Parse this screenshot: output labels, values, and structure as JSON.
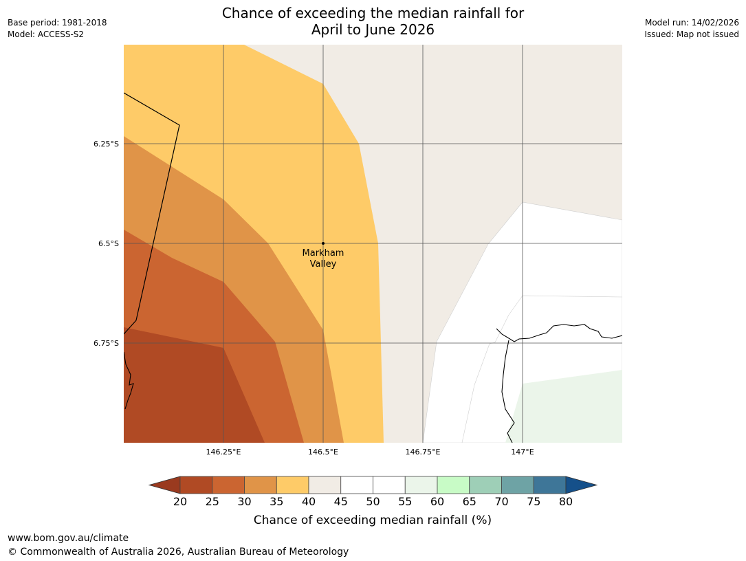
{
  "header": {
    "title_line1": "Chance of exceeding the median rainfall for",
    "title_line2": "April to June 2026",
    "base_period": "Base period: 1981-2018",
    "model": "Model: ACCESS-S2",
    "model_run": "Model run: 14/02/2026",
    "issued": "Issued: Map not issued"
  },
  "map": {
    "lat_labels": [
      "6.25°S",
      "6.5°S",
      "6.75°S"
    ],
    "lon_labels": [
      "146.25°E",
      "146.5°E",
      "146.75°E",
      "147°E"
    ],
    "place_line1": "Markham",
    "place_line2": "Valley"
  },
  "colorbar": {
    "title": "Chance of exceeding median rainfall (%)",
    "ticks": [
      "20",
      "25",
      "30",
      "35",
      "40",
      "45",
      "50",
      "55",
      "60",
      "65",
      "70",
      "75",
      "80"
    ],
    "under_color": "#9a3a1f",
    "over_color": "#15508a",
    "colors": [
      "#b04a24",
      "#cb6531",
      "#e09448",
      "#fecb68",
      "#f1ece5",
      "#ffffff",
      "#ffffff",
      "#ebf5ea",
      "#c8fbc6",
      "#9ecfb7",
      "#6ea3a5",
      "#3e7698"
    ]
  },
  "footer": {
    "url": "www.bom.gov.au/climate",
    "copyright": "© Commonwealth of Australia 2026, Australian Bureau of Meteorology"
  }
}
